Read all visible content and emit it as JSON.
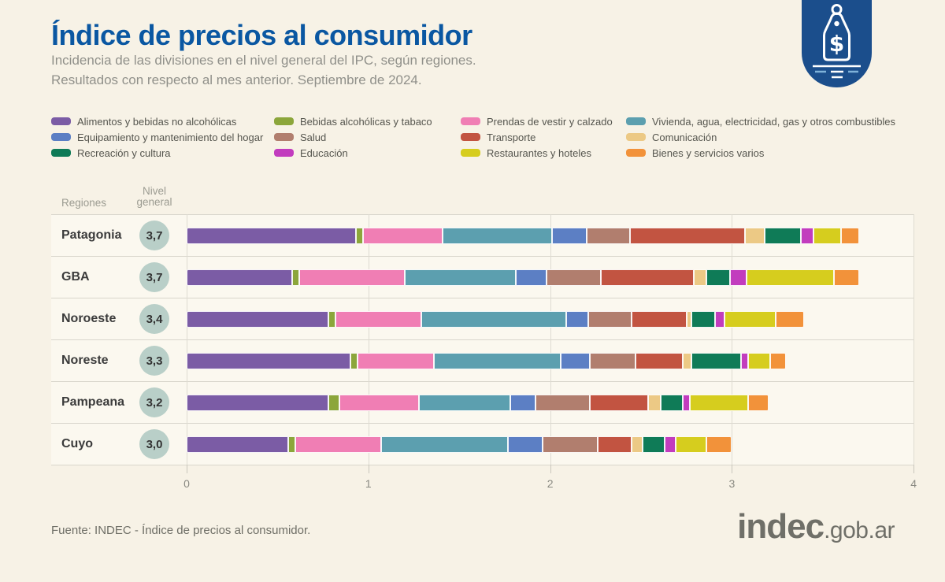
{
  "header": {
    "title": "Índice de precios al consumidor",
    "subtitle_line1": "Incidencia de las divisiones en el nivel general del IPC, según regiones.",
    "subtitle_line2": "Resultados con respecto al mes anterior. Septiembre de 2024."
  },
  "logo_badge": {
    "icon": "price-tag-icon",
    "background_color": "#1B4E8C",
    "accent_color": "#7FB2D9"
  },
  "chart_data": {
    "type": "bar",
    "subtype": "horizontal_stacked",
    "title": "Índice de precios al consumidor",
    "subtitle": "Incidencia de las divisiones en el nivel general del IPC, según regiones. Septiembre de 2024",
    "xlabel": "",
    "ylabel": "Regiones",
    "xlim": [
      0,
      4
    ],
    "axis": {
      "min": 0,
      "max": 4,
      "ticks": [
        "0",
        "1",
        "2",
        "3",
        "4"
      ]
    },
    "grid": true,
    "legend_position": "top",
    "column_headers": {
      "regions": "Regiones",
      "level_line1": "Nivel",
      "level_line2": "general"
    },
    "divisions": [
      {
        "id": "alimentos",
        "label": "Alimentos y bebidas no alcohólicas",
        "color": "#7B5CA5"
      },
      {
        "id": "bebidas_alcoholicas",
        "label": "Bebidas alcohólicas y tabaco",
        "color": "#8CA63B"
      },
      {
        "id": "prendas",
        "label": "Prendas de vestir y calzado",
        "color": "#F07EB4"
      },
      {
        "id": "vivienda",
        "label": "Vivienda, agua, electricidad, gas y otros combustibles",
        "color": "#5C9FAF"
      },
      {
        "id": "equipamiento",
        "label": "Equipamiento y mantenimiento del hogar",
        "color": "#5C7FC4"
      },
      {
        "id": "salud",
        "label": "Salud",
        "color": "#B17E6E"
      },
      {
        "id": "transporte",
        "label": "Transporte",
        "color": "#C25441"
      },
      {
        "id": "comunicacion",
        "label": "Comunicación",
        "color": "#ECC985"
      },
      {
        "id": "recreacion",
        "label": "Recreación y cultura",
        "color": "#0F7B57"
      },
      {
        "id": "educacion",
        "label": "Educación",
        "color": "#C23CBE"
      },
      {
        "id": "restaurantes",
        "label": "Restaurantes y hoteles",
        "color": "#D6CD1E"
      },
      {
        "id": "bienes",
        "label": "Bienes y servicios varios",
        "color": "#F2923A"
      }
    ],
    "legend_column_order": [
      [
        0,
        4,
        8
      ],
      [
        1,
        5,
        9
      ],
      [
        2,
        6,
        10
      ],
      [
        3,
        7,
        11
      ]
    ],
    "rows": [
      {
        "region": "Patagonia",
        "nivel_general": "3,7",
        "values": [
          0.93,
          0.04,
          0.44,
          0.6,
          0.19,
          0.24,
          0.63,
          0.11,
          0.2,
          0.07,
          0.15,
          0.1
        ]
      },
      {
        "region": "GBA",
        "nivel_general": "3,7",
        "values": [
          0.58,
          0.04,
          0.58,
          0.61,
          0.17,
          0.3,
          0.51,
          0.07,
          0.13,
          0.09,
          0.48,
          0.14
        ]
      },
      {
        "region": "Noroeste",
        "nivel_general": "3,4",
        "values": [
          0.78,
          0.04,
          0.47,
          0.8,
          0.12,
          0.24,
          0.3,
          0.03,
          0.13,
          0.05,
          0.28,
          0.16
        ]
      },
      {
        "region": "Noreste",
        "nivel_general": "3,3",
        "values": [
          0.9,
          0.04,
          0.42,
          0.7,
          0.16,
          0.25,
          0.26,
          0.05,
          0.27,
          0.04,
          0.12,
          0.09
        ]
      },
      {
        "region": "Pampeana",
        "nivel_general": "3,2",
        "values": [
          0.78,
          0.06,
          0.44,
          0.5,
          0.14,
          0.3,
          0.32,
          0.07,
          0.12,
          0.04,
          0.32,
          0.11
        ]
      },
      {
        "region": "Cuyo",
        "nivel_general": "3,0",
        "values": [
          0.56,
          0.04,
          0.47,
          0.7,
          0.19,
          0.3,
          0.19,
          0.06,
          0.12,
          0.06,
          0.17,
          0.14
        ]
      }
    ]
  },
  "footer": {
    "source": "Fuente: INDEC - Índice de precios al consumidor.",
    "site_logo_main": "indec",
    "site_logo_suffix": ".gob.ar"
  },
  "colors": {
    "page_bg": "#F7F2E6",
    "row_band": "#FBF8EF",
    "separator": "#D9D6CC",
    "gridline": "#DEDBD1",
    "title": "#0A57A2",
    "subtitle": "#90908A",
    "badge_circle": "#B9CFC8",
    "region_label": "#3B3B3B",
    "axis_label": "#8A8A82",
    "badge_bg": "#1B4E8C",
    "badge_accent": "#7FB2D9",
    "logo_gray": "#6F6F68"
  }
}
